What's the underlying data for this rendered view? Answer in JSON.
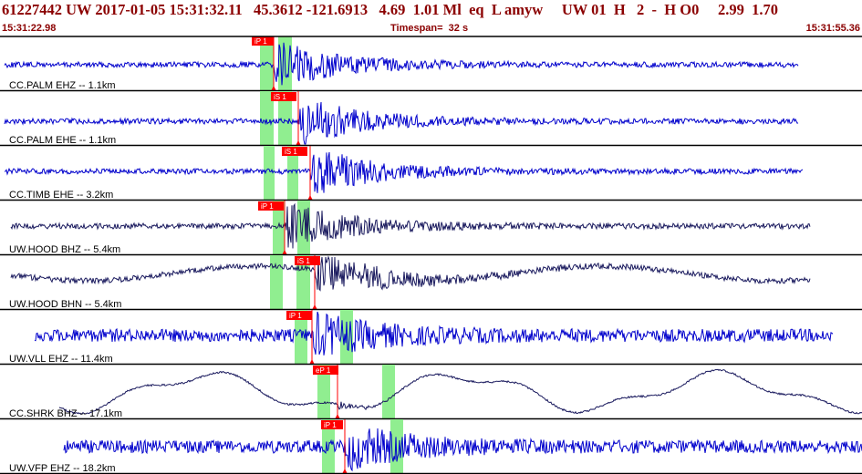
{
  "header": {
    "event_line": "61227442 UW 2017-01-05 15:31:32.11   45.3612 -121.6913   4.69  1.01 Ml  eq  L amyw     UW 01  H   2  -  H O0     2.99  1.70",
    "start_time": "15:31:22.98",
    "timespan": "Timespan=  32 s",
    "end_time": "15:31:55.36"
  },
  "colors": {
    "blue": "#0000cc",
    "dark": "#1a1a5e",
    "pick": "#ff0000",
    "window": "#90ee90",
    "header": "#8b0000"
  },
  "traces": [
    {
      "label": "CC.PALM EHZ -- 1.1km",
      "pick": "iP 1",
      "color": "blue",
      "amp": 1.0,
      "style": "seis"
    },
    {
      "label": "CC.PALM EHE -- 1.1km",
      "pick": "iS 1",
      "color": "blue",
      "amp": 1.0,
      "style": "seis"
    },
    {
      "label": "CC.TIMB EHE -- 3.2km",
      "pick": "iS 1",
      "color": "blue",
      "amp": 1.0,
      "style": "seis"
    },
    {
      "label": "UW.HOOD BHZ -- 5.4km",
      "pick": "iP 1",
      "color": "dark",
      "amp": 1.0,
      "style": "seis"
    },
    {
      "label": "UW.HOOD BHN -- 5.4km",
      "pick": "iS 1",
      "color": "dark",
      "amp": 1.0,
      "style": "seis"
    },
    {
      "label": "UW.VLL EHZ -- 11.4km",
      "pick": "iP 1",
      "color": "blue",
      "amp": 1.0,
      "style": "noisy"
    },
    {
      "label": "CC.SHRK BHZ -- 17.1km",
      "pick": "eP 1",
      "color": "dark",
      "amp": 1.0,
      "style": "slow"
    },
    {
      "label": "UW.VFP EHZ -- 18.2km",
      "pick": "iP 1",
      "color": "blue",
      "amp": 1.0,
      "style": "noisy"
    }
  ]
}
